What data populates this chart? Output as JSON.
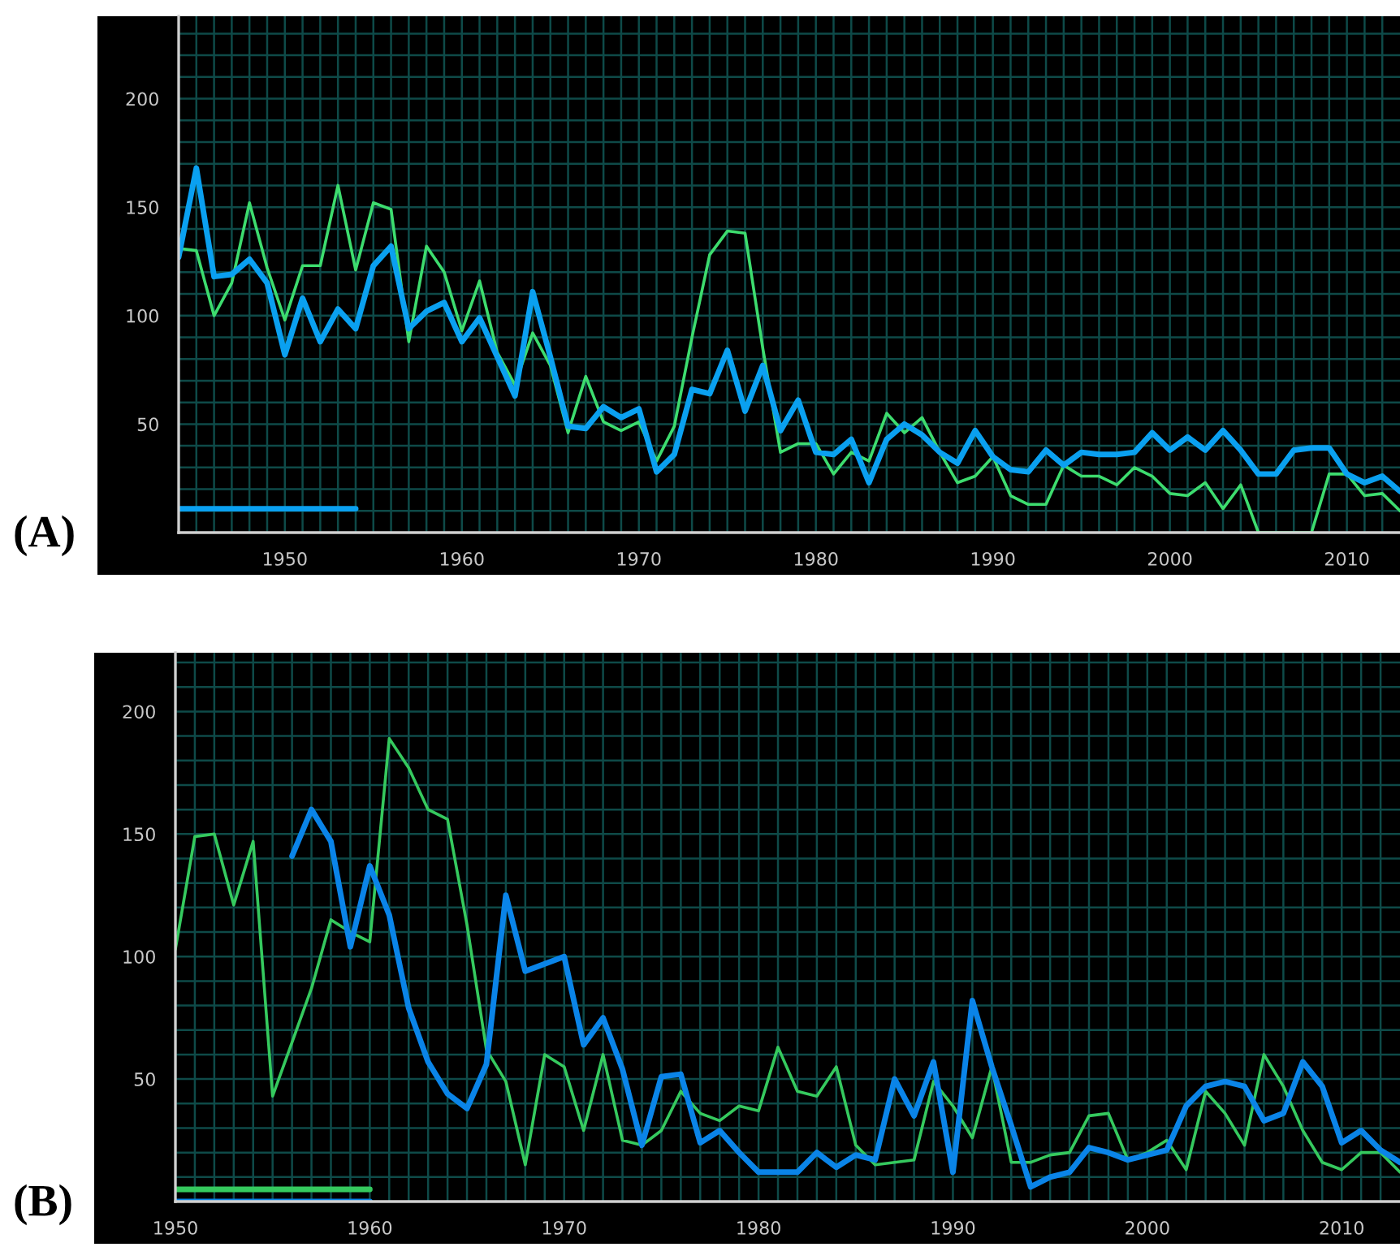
{
  "chart_data": [
    {
      "type": "line",
      "annotations": [
        "(A)"
      ],
      "xlim": [
        1944,
        2013
      ],
      "ylim": [
        0,
        238
      ],
      "grid": true,
      "x": [
        1944,
        1945,
        1946,
        1947,
        1948,
        1949,
        1950,
        1951,
        1952,
        1953,
        1954,
        1955,
        1956,
        1957,
        1958,
        1959,
        1960,
        1961,
        1962,
        1963,
        1964,
        1965,
        1966,
        1967,
        1968,
        1969,
        1970,
        1971,
        1972,
        1973,
        1974,
        1975,
        1976,
        1977,
        1978,
        1979,
        1980,
        1981,
        1982,
        1983,
        1984,
        1985,
        1986,
        1987,
        1988,
        1989,
        1990,
        1991,
        1992,
        1993,
        1994,
        1995,
        1996,
        1997,
        1998,
        1999,
        2000,
        2001,
        2002,
        2003,
        2004,
        2005,
        2006,
        2007,
        2008,
        2009,
        2010,
        2011,
        2012,
        2013
      ],
      "series": [
        {
          "color": "#3ddc6e",
          "values": [
            131,
            130,
            100,
            115,
            152,
            122,
            98,
            123,
            123,
            160,
            121,
            152,
            149,
            88,
            132,
            120,
            93,
            116,
            83,
            68,
            92,
            77,
            46,
            72,
            51,
            47,
            51,
            33,
            49,
            90,
            128,
            139,
            138,
            85,
            37,
            41,
            41,
            27,
            37,
            33,
            55,
            46,
            53,
            37,
            23,
            26,
            35,
            17,
            13,
            13,
            31,
            26,
            26,
            22,
            30,
            26,
            18,
            17,
            23,
            11,
            22,
            0,
            0,
            0,
            0,
            27,
            27,
            17,
            18,
            10
          ]
        },
        {
          "color": "#0aa0f0",
          "values": [
            127,
            168,
            118,
            119,
            126,
            115,
            82,
            108,
            88,
            103,
            94,
            123,
            132,
            94,
            102,
            106,
            88,
            99,
            81,
            63,
            111,
            81,
            49,
            48,
            58,
            53,
            57,
            28,
            36,
            66,
            64,
            84,
            56,
            77,
            47,
            61,
            37,
            36,
            43,
            23,
            43,
            50,
            45,
            37,
            32,
            47,
            35,
            29,
            28,
            38,
            31,
            37,
            36,
            36,
            37,
            46,
            38,
            44,
            38,
            47,
            38,
            27,
            27,
            38,
            39,
            39,
            27,
            23,
            26,
            19
          ]
        },
        {
          "color": "#0aa0f0",
          "x": [
            1944,
            1954
          ],
          "values": [
            11,
            11
          ]
        }
      ],
      "xticks": [
        {
          "value": 1944,
          "label": null
        },
        {
          "value": 1945,
          "label": null
        },
        {
          "value": 1946,
          "label": null
        },
        {
          "value": 1947,
          "label": null
        },
        {
          "value": 1948,
          "label": null
        },
        {
          "value": 1949,
          "label": null
        },
        1950,
        {
          "value": 1951,
          "label": null
        },
        {
          "value": 1952,
          "label": null
        },
        {
          "value": 1953,
          "label": null
        },
        {
          "value": 1954,
          "label": null
        },
        {
          "value": 1955,
          "label": null
        },
        {
          "value": 1956,
          "label": null
        },
        {
          "value": 1957,
          "label": null
        },
        {
          "value": 1958,
          "label": null
        },
        {
          "value": 1959,
          "label": null
        },
        1960,
        {
          "value": 1961,
          "label": null
        },
        {
          "value": 1962,
          "label": null
        },
        {
          "value": 1963,
          "label": null
        },
        {
          "value": 1964,
          "label": null
        },
        {
          "value": 1965,
          "label": null
        },
        {
          "value": 1966,
          "label": null
        },
        {
          "value": 1967,
          "label": null
        },
        {
          "value": 1968,
          "label": null
        },
        {
          "value": 1969,
          "label": null
        },
        1970,
        {
          "value": 1971,
          "label": null
        },
        {
          "value": 1972,
          "label": null
        },
        {
          "value": 1973,
          "label": null
        },
        {
          "value": 1974,
          "label": null
        },
        {
          "value": 1975,
          "label": null
        },
        {
          "value": 1976,
          "label": null
        },
        {
          "value": 1977,
          "label": null
        },
        {
          "value": 1978,
          "label": null
        },
        {
          "value": 1979,
          "label": null
        },
        1980,
        {
          "value": 1981,
          "label": null
        },
        {
          "value": 1982,
          "label": null
        },
        {
          "value": 1983,
          "label": null
        },
        {
          "value": 1984,
          "label": null
        },
        {
          "value": 1985,
          "label": null
        },
        {
          "value": 1986,
          "label": null
        },
        {
          "value": 1987,
          "label": null
        },
        {
          "value": 1988,
          "label": null
        },
        {
          "value": 1989,
          "label": null
        },
        1990,
        {
          "value": 1991,
          "label": null
        },
        {
          "value": 1992,
          "label": null
        },
        {
          "value": 1993,
          "label": null
        },
        {
          "value": 1994,
          "label": null
        },
        {
          "value": 1995,
          "label": null
        },
        {
          "value": 1996,
          "label": null
        },
        {
          "value": 1997,
          "label": null
        },
        {
          "value": 1998,
          "label": null
        },
        {
          "value": 1999,
          "label": null
        },
        2000,
        {
          "value": 2001,
          "label": null
        },
        {
          "value": 2002,
          "label": null
        },
        {
          "value": 2003,
          "label": null
        },
        {
          "value": 2004,
          "label": null
        },
        {
          "value": 2005,
          "label": null
        },
        {
          "value": 2006,
          "label": null
        },
        {
          "value": 2007,
          "label": null
        },
        {
          "value": 2008,
          "label": null
        },
        {
          "value": 2009,
          "label": null
        },
        2010,
        {
          "value": 2011,
          "label": null
        },
        {
          "value": 2012,
          "label": null
        }
      ],
      "yticks": [
        {
          "value": 10,
          "label": null
        },
        {
          "value": 20,
          "label": null
        },
        {
          "value": 30,
          "label": null
        },
        {
          "value": 40,
          "label": null
        },
        50,
        {
          "value": 60,
          "label": null
        },
        {
          "value": 70,
          "label": null
        },
        {
          "value": 80,
          "label": null
        },
        {
          "value": 90,
          "label": null
        },
        100,
        {
          "value": 110,
          "label": null
        },
        {
          "value": 120,
          "label": null
        },
        {
          "value": 130,
          "label": null
        },
        {
          "value": 140,
          "label": null
        },
        150,
        {
          "value": 160,
          "label": null
        },
        {
          "value": 170,
          "label": null
        },
        {
          "value": 180,
          "label": null
        },
        {
          "value": 190,
          "label": null
        },
        200,
        {
          "value": 210,
          "label": null
        },
        {
          "value": 220,
          "label": null
        },
        {
          "value": 230,
          "label": null
        }
      ]
    },
    {
      "type": "line",
      "annotations": [
        "(B)"
      ],
      "xlim": [
        1950,
        2013
      ],
      "ylim": [
        0,
        224
      ],
      "grid": true,
      "x": [
        1950,
        1951,
        1952,
        1953,
        1954,
        1955,
        1956,
        1957,
        1958,
        1959,
        1960,
        1961,
        1962,
        1963,
        1964,
        1965,
        1966,
        1967,
        1968,
        1969,
        1970,
        1971,
        1972,
        1973,
        1974,
        1975,
        1976,
        1977,
        1978,
        1979,
        1980,
        1981,
        1982,
        1983,
        1984,
        1985,
        1986,
        1987,
        1988,
        1989,
        1990,
        1991,
        1992,
        1993,
        1994,
        1995,
        1996,
        1997,
        1998,
        1999,
        2000,
        2001,
        2002,
        2003,
        2004,
        2005,
        2006,
        2007,
        2008,
        2009,
        2010,
        2011,
        2012,
        2013
      ],
      "series": [
        {
          "color": "#35c95e",
          "values": [
            103,
            149,
            150,
            121,
            147,
            43,
            65,
            87,
            115,
            110,
            106,
            189,
            177,
            160,
            156,
            113,
            62,
            49,
            15,
            60,
            55,
            29,
            60,
            25,
            23,
            29,
            45,
            36,
            33,
            39,
            37,
            63,
            45,
            43,
            55,
            23,
            15,
            16,
            17,
            49,
            39,
            26,
            55,
            16,
            16,
            19,
            20,
            35,
            36,
            17,
            20,
            25,
            13,
            45,
            36,
            23,
            60,
            47,
            29,
            16,
            13,
            20,
            20,
            12
          ]
        },
        {
          "color": "#0a84e8",
          "values": [
            null,
            null,
            null,
            null,
            null,
            null,
            141,
            160,
            147,
            104,
            137,
            117,
            79,
            57,
            44,
            38,
            56,
            125,
            94,
            97,
            100,
            64,
            75,
            54,
            23,
            51,
            52,
            24,
            29,
            20,
            12,
            12,
            12,
            20,
            14,
            19,
            17,
            50,
            35,
            57,
            12,
            82,
            55,
            31,
            6,
            10,
            12,
            22,
            20,
            17,
            19,
            21,
            39,
            47,
            49,
            47,
            33,
            36,
            57,
            47,
            24,
            29,
            21,
            16
          ]
        },
        {
          "color": "#35c95e",
          "x": [
            1950,
            1960
          ],
          "values": [
            5,
            5
          ]
        },
        {
          "color": "#0a84e8",
          "x": [
            1950,
            1960
          ],
          "values": [
            0,
            0
          ]
        }
      ],
      "xticks": [
        1950,
        {
          "value": 1951,
          "label": null
        },
        {
          "value": 1952,
          "label": null
        },
        {
          "value": 1953,
          "label": null
        },
        {
          "value": 1954,
          "label": null
        },
        {
          "value": 1955,
          "label": null
        },
        {
          "value": 1956,
          "label": null
        },
        {
          "value": 1957,
          "label": null
        },
        {
          "value": 1958,
          "label": null
        },
        {
          "value": 1959,
          "label": null
        },
        1960,
        {
          "value": 1961,
          "label": null
        },
        {
          "value": 1962,
          "label": null
        },
        {
          "value": 1963,
          "label": null
        },
        {
          "value": 1964,
          "label": null
        },
        {
          "value": 1965,
          "label": null
        },
        {
          "value": 1966,
          "label": null
        },
        {
          "value": 1967,
          "label": null
        },
        {
          "value": 1968,
          "label": null
        },
        {
          "value": 1969,
          "label": null
        },
        1970,
        {
          "value": 1971,
          "label": null
        },
        {
          "value": 1972,
          "label": null
        },
        {
          "value": 1973,
          "label": null
        },
        {
          "value": 1974,
          "label": null
        },
        {
          "value": 1975,
          "label": null
        },
        {
          "value": 1976,
          "label": null
        },
        {
          "value": 1977,
          "label": null
        },
        {
          "value": 1978,
          "label": null
        },
        {
          "value": 1979,
          "label": null
        },
        1980,
        {
          "value": 1981,
          "label": null
        },
        {
          "value": 1982,
          "label": null
        },
        {
          "value": 1983,
          "label": null
        },
        {
          "value": 1984,
          "label": null
        },
        {
          "value": 1985,
          "label": null
        },
        {
          "value": 1986,
          "label": null
        },
        {
          "value": 1987,
          "label": null
        },
        {
          "value": 1988,
          "label": null
        },
        {
          "value": 1989,
          "label": null
        },
        1990,
        {
          "value": 1991,
          "label": null
        },
        {
          "value": 1992,
          "label": null
        },
        {
          "value": 1993,
          "label": null
        },
        {
          "value": 1994,
          "label": null
        },
        {
          "value": 1995,
          "label": null
        },
        {
          "value": 1996,
          "label": null
        },
        {
          "value": 1997,
          "label": null
        },
        {
          "value": 1998,
          "label": null
        },
        {
          "value": 1999,
          "label": null
        },
        2000,
        {
          "value": 2001,
          "label": null
        },
        {
          "value": 2002,
          "label": null
        },
        {
          "value": 2003,
          "label": null
        },
        {
          "value": 2004,
          "label": null
        },
        {
          "value": 2005,
          "label": null
        },
        {
          "value": 2006,
          "label": null
        },
        {
          "value": 2007,
          "label": null
        },
        {
          "value": 2008,
          "label": null
        },
        {
          "value": 2009,
          "label": null
        },
        2010,
        {
          "value": 2011,
          "label": null
        },
        {
          "value": 2012,
          "label": null
        }
      ],
      "yticks": [
        {
          "value": 10,
          "label": null
        },
        {
          "value": 20,
          "label": null
        },
        {
          "value": 30,
          "label": null
        },
        {
          "value": 40,
          "label": null
        },
        50,
        {
          "value": 60,
          "label": null
        },
        {
          "value": 70,
          "label": null
        },
        {
          "value": 80,
          "label": null
        },
        {
          "value": 90,
          "label": null
        },
        100,
        {
          "value": 110,
          "label": null
        },
        {
          "value": 120,
          "label": null
        },
        {
          "value": 130,
          "label": null
        },
        {
          "value": 140,
          "label": null
        },
        150,
        {
          "value": 160,
          "label": null
        },
        {
          "value": 170,
          "label": null
        },
        {
          "value": 180,
          "label": null
        },
        {
          "value": 190,
          "label": null
        },
        200,
        {
          "value": 210,
          "label": null
        },
        {
          "value": 220,
          "label": null
        }
      ]
    }
  ]
}
